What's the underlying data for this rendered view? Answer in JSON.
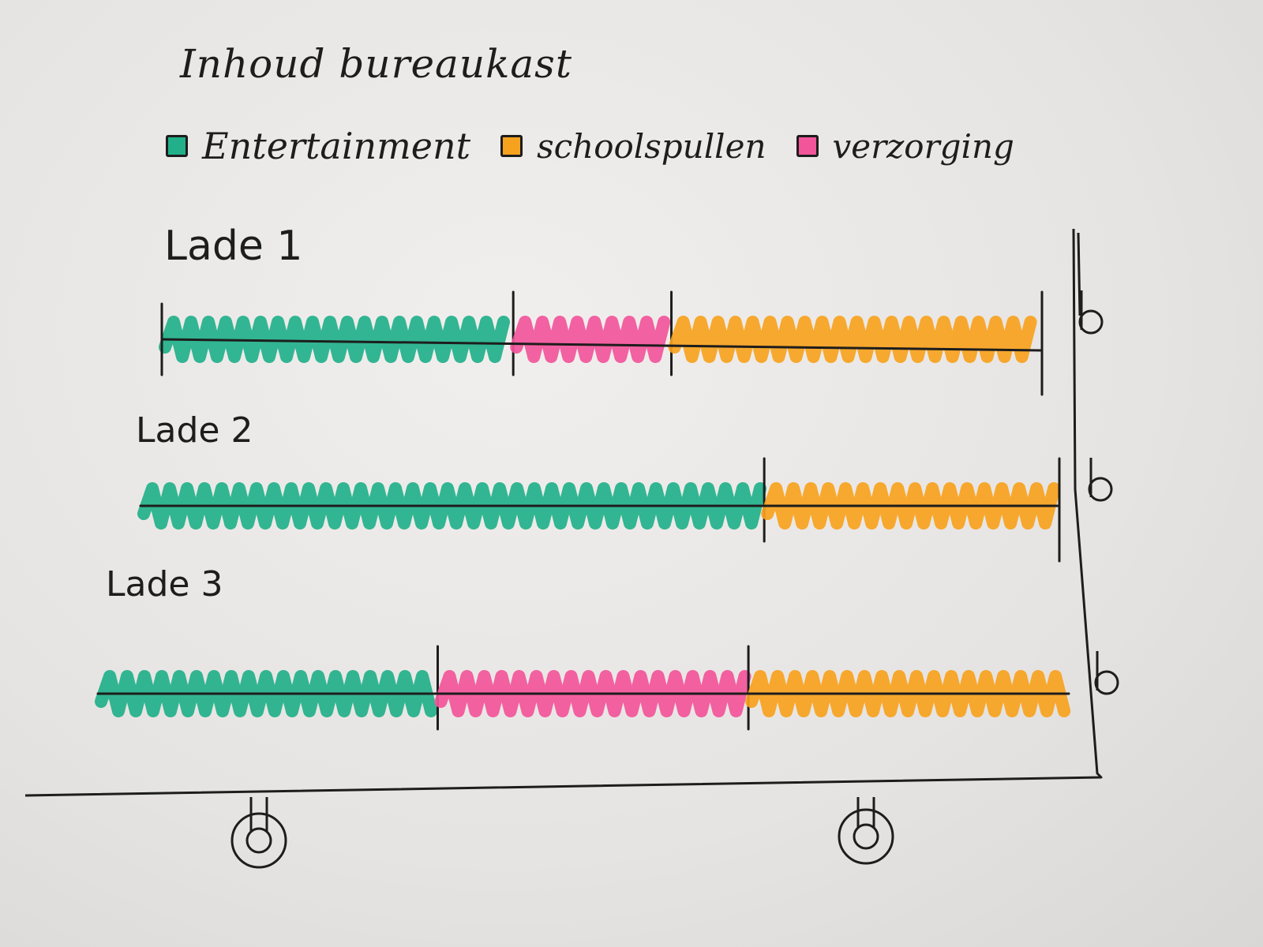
{
  "colors": {
    "entertainment": "#22b08a",
    "schoolspullen": "#f7a21e",
    "verzorging": "#f2559a",
    "ink": "#1d1d1d"
  },
  "chart_data": {
    "type": "bar",
    "orientation": "horizontal",
    "stacked": true,
    "title": "Inhoud bureaukast",
    "legend": [
      {
        "name": "Entertainment",
        "color": "#22b08a"
      },
      {
        "name": "schoolspullen",
        "color": "#f7a21e"
      },
      {
        "name": "verzorging",
        "color": "#f2559a"
      }
    ],
    "legend_position": "top",
    "grid": false,
    "drawers": [
      {
        "label": "Lade 1",
        "segments": [
          {
            "category": "Entertainment",
            "share": 0.4
          },
          {
            "category": "verzorging",
            "share": 0.18
          },
          {
            "category": "schoolspullen",
            "share": 0.42
          }
        ]
      },
      {
        "label": "Lade 2",
        "segments": [
          {
            "category": "Entertainment",
            "share": 0.68
          },
          {
            "category": "schoolspullen",
            "share": 0.32
          }
        ]
      },
      {
        "label": "Lade 3",
        "segments": [
          {
            "category": "Entertainment",
            "share": 0.35
          },
          {
            "category": "verzorging",
            "share": 0.32
          },
          {
            "category": "schoolspullen",
            "share": 0.33
          }
        ]
      }
    ]
  }
}
